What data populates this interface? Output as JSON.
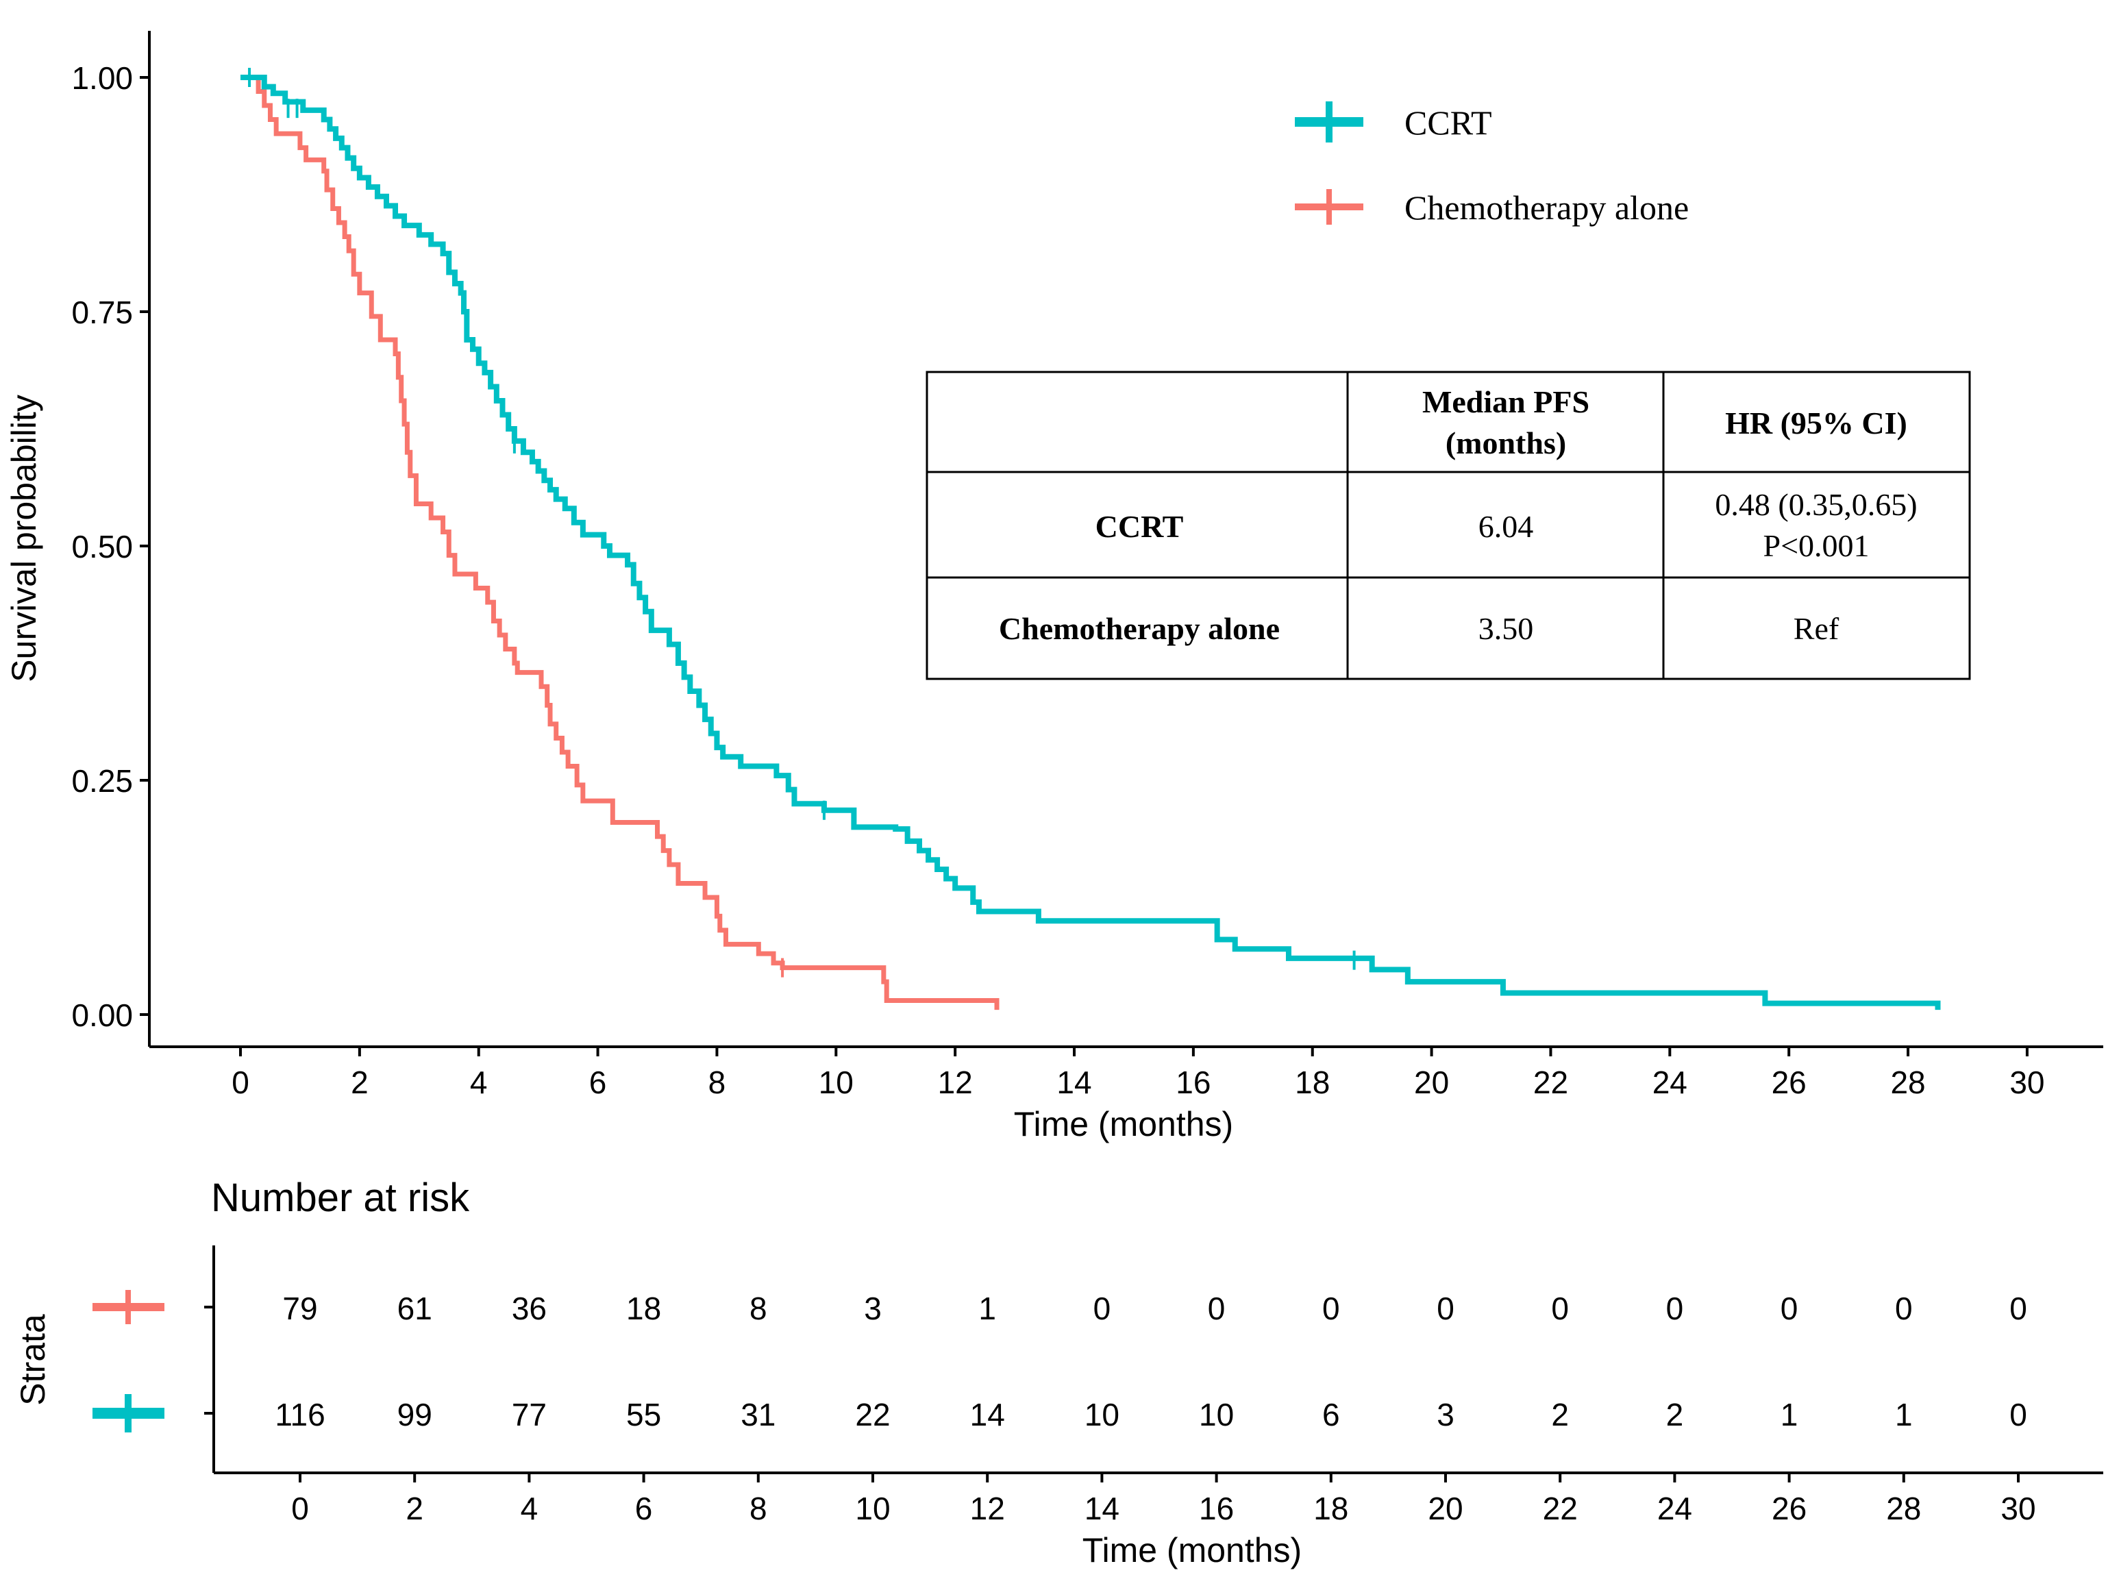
{
  "chart_data": {
    "type": "line",
    "subtype": "kaplan-meier",
    "xlabel": "Time (months)",
    "ylabel": "Survival probability",
    "xlim": [
      -1.5,
      31.5
    ],
    "ylim": [
      -0.05,
      1.05
    ],
    "x_ticks": [
      0,
      2,
      4,
      6,
      8,
      10,
      12,
      14,
      16,
      18,
      20,
      22,
      24,
      26,
      28,
      30
    ],
    "y_ticks": [
      "0.00",
      "0.25",
      "0.50",
      "0.75",
      "1.00"
    ],
    "legend": {
      "position": "top-right",
      "entries": [
        "CCRT",
        "Chemotherapy alone"
      ]
    },
    "series": [
      {
        "name": "CCRT",
        "color": "#00BFC4",
        "steps": [
          [
            0,
            1.0
          ],
          [
            0.4,
            0.99
          ],
          [
            0.55,
            0.983
          ],
          [
            0.75,
            0.974
          ],
          [
            1.05,
            0.965
          ],
          [
            1.4,
            0.955
          ],
          [
            1.5,
            0.945
          ],
          [
            1.6,
            0.935
          ],
          [
            1.7,
            0.925
          ],
          [
            1.8,
            0.914
          ],
          [
            1.9,
            0.903
          ],
          [
            2.0,
            0.893
          ],
          [
            2.15,
            0.883
          ],
          [
            2.3,
            0.873
          ],
          [
            2.45,
            0.863
          ],
          [
            2.6,
            0.852
          ],
          [
            2.75,
            0.842
          ],
          [
            3.0,
            0.832
          ],
          [
            3.2,
            0.822
          ],
          [
            3.4,
            0.812
          ],
          [
            3.5,
            0.792
          ],
          [
            3.6,
            0.78
          ],
          [
            3.7,
            0.77
          ],
          [
            3.75,
            0.75
          ],
          [
            3.8,
            0.72
          ],
          [
            3.9,
            0.71
          ],
          [
            4.0,
            0.695
          ],
          [
            4.1,
            0.685
          ],
          [
            4.2,
            0.67
          ],
          [
            4.3,
            0.655
          ],
          [
            4.4,
            0.64
          ],
          [
            4.5,
            0.625
          ],
          [
            4.6,
            0.612
          ],
          [
            4.75,
            0.6
          ],
          [
            4.9,
            0.59
          ],
          [
            5.0,
            0.58
          ],
          [
            5.1,
            0.57
          ],
          [
            5.2,
            0.56
          ],
          [
            5.3,
            0.55
          ],
          [
            5.45,
            0.54
          ],
          [
            5.6,
            0.525
          ],
          [
            5.75,
            0.512
          ],
          [
            6.1,
            0.5
          ],
          [
            6.2,
            0.49
          ],
          [
            6.5,
            0.48
          ],
          [
            6.6,
            0.46
          ],
          [
            6.7,
            0.445
          ],
          [
            6.8,
            0.43
          ],
          [
            6.9,
            0.41
          ],
          [
            7.2,
            0.395
          ],
          [
            7.35,
            0.375
          ],
          [
            7.45,
            0.36
          ],
          [
            7.55,
            0.345
          ],
          [
            7.7,
            0.33
          ],
          [
            7.8,
            0.315
          ],
          [
            7.9,
            0.3
          ],
          [
            8.0,
            0.285
          ],
          [
            8.1,
            0.275
          ],
          [
            8.4,
            0.265
          ],
          [
            9.0,
            0.255
          ],
          [
            9.2,
            0.24
          ],
          [
            9.3,
            0.225
          ],
          [
            9.8,
            0.218
          ],
          [
            10.3,
            0.2
          ],
          [
            11.0,
            0.198
          ],
          [
            11.2,
            0.185
          ],
          [
            11.4,
            0.175
          ],
          [
            11.55,
            0.165
          ],
          [
            11.7,
            0.155
          ],
          [
            11.85,
            0.145
          ],
          [
            12.0,
            0.135
          ],
          [
            12.3,
            0.12
          ],
          [
            12.4,
            0.11
          ],
          [
            13.4,
            0.1
          ],
          [
            16.4,
            0.08
          ],
          [
            16.7,
            0.07
          ],
          [
            17.6,
            0.06
          ],
          [
            19.0,
            0.048
          ],
          [
            19.6,
            0.035
          ],
          [
            21.2,
            0.023
          ],
          [
            25.6,
            0.012
          ],
          [
            28.5,
            0.005
          ]
        ],
        "censors": [
          [
            0.15,
            1.0
          ],
          [
            0.8,
            0.967
          ],
          [
            0.95,
            0.967
          ],
          [
            4.6,
            0.609
          ],
          [
            9.8,
            0.218
          ],
          [
            18.7,
            0.058
          ]
        ],
        "at_risk": [
          116,
          99,
          77,
          55,
          31,
          22,
          14,
          10,
          10,
          6,
          3,
          2,
          2,
          1,
          1,
          0
        ]
      },
      {
        "name": "Chemotherapy alone",
        "color": "#F8766D",
        "steps": [
          [
            0,
            1.0
          ],
          [
            0.3,
            0.985
          ],
          [
            0.4,
            0.97
          ],
          [
            0.5,
            0.955
          ],
          [
            0.6,
            0.94
          ],
          [
            1.0,
            0.925
          ],
          [
            1.1,
            0.912
          ],
          [
            1.4,
            0.9
          ],
          [
            1.45,
            0.88
          ],
          [
            1.55,
            0.86
          ],
          [
            1.65,
            0.845
          ],
          [
            1.75,
            0.83
          ],
          [
            1.82,
            0.815
          ],
          [
            1.9,
            0.79
          ],
          [
            2.0,
            0.77
          ],
          [
            2.2,
            0.745
          ],
          [
            2.35,
            0.72
          ],
          [
            2.6,
            0.705
          ],
          [
            2.65,
            0.68
          ],
          [
            2.7,
            0.655
          ],
          [
            2.75,
            0.63
          ],
          [
            2.8,
            0.6
          ],
          [
            2.85,
            0.575
          ],
          [
            2.95,
            0.545
          ],
          [
            3.2,
            0.53
          ],
          [
            3.4,
            0.515
          ],
          [
            3.5,
            0.49
          ],
          [
            3.6,
            0.47
          ],
          [
            3.95,
            0.455
          ],
          [
            4.15,
            0.44
          ],
          [
            4.25,
            0.42
          ],
          [
            4.35,
            0.405
          ],
          [
            4.45,
            0.39
          ],
          [
            4.6,
            0.375
          ],
          [
            4.65,
            0.365
          ],
          [
            5.05,
            0.35
          ],
          [
            5.15,
            0.33
          ],
          [
            5.2,
            0.31
          ],
          [
            5.3,
            0.295
          ],
          [
            5.4,
            0.28
          ],
          [
            5.5,
            0.265
          ],
          [
            5.65,
            0.245
          ],
          [
            5.75,
            0.228
          ],
          [
            6.25,
            0.205
          ],
          [
            7.0,
            0.19
          ],
          [
            7.1,
            0.175
          ],
          [
            7.2,
            0.16
          ],
          [
            7.35,
            0.14
          ],
          [
            7.8,
            0.125
          ],
          [
            8.0,
            0.105
          ],
          [
            8.05,
            0.09
          ],
          [
            8.15,
            0.075
          ],
          [
            8.7,
            0.065
          ],
          [
            8.95,
            0.055
          ],
          [
            9.1,
            0.05
          ],
          [
            10.8,
            0.035
          ],
          [
            10.85,
            0.015
          ],
          [
            12.7,
            0.005
          ]
        ],
        "censors": [
          [
            9.1,
            0.05
          ]
        ],
        "at_risk": [
          79,
          61,
          36,
          18,
          8,
          3,
          1,
          0,
          0,
          0,
          0,
          0,
          0,
          0,
          0,
          0
        ]
      }
    ],
    "inset_table": {
      "headers": [
        "",
        "Median PFS (months)",
        "HR (95% CI)"
      ],
      "header_lines": {
        "median": [
          "Median PFS",
          "(months)"
        ],
        "hr": "HR (95% CI)"
      },
      "rows": [
        {
          "group": "CCRT",
          "median": "6.04",
          "hr": "0.48 (0.35,0.65)",
          "p": "P<0.001"
        },
        {
          "group": "Chemotherapy alone",
          "median": "3.50",
          "hr": "Ref",
          "p": ""
        }
      ]
    },
    "risk_table": {
      "title": "Number at risk",
      "ylabel": "Strata",
      "xlabel": "Time (months)",
      "times": [
        0,
        2,
        4,
        6,
        8,
        10,
        12,
        14,
        16,
        18,
        20,
        22,
        24,
        26,
        28,
        30
      ]
    }
  }
}
